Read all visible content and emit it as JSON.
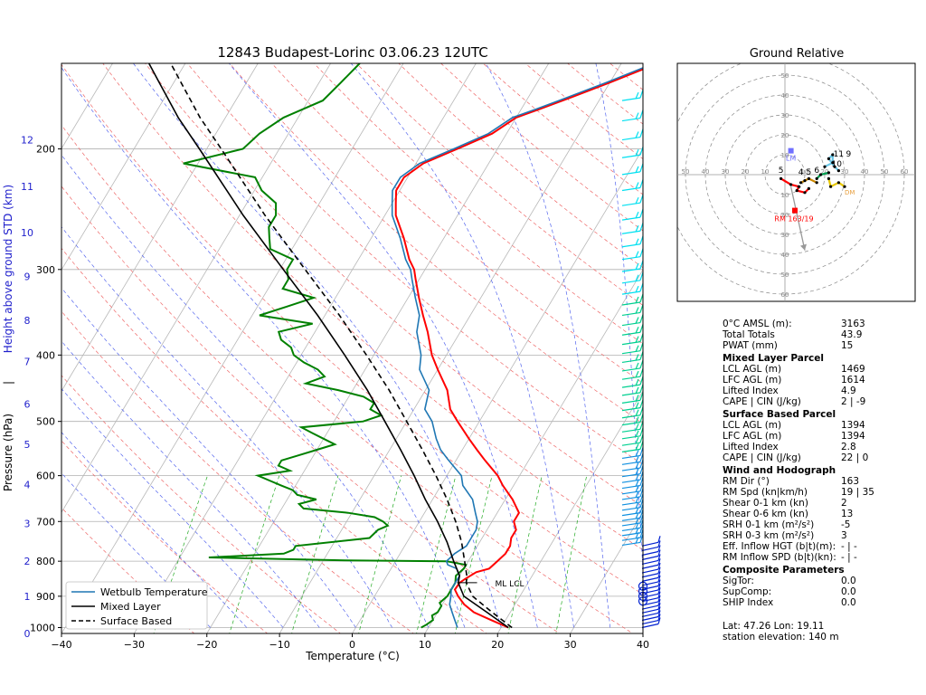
{
  "title": "12843 Budapest-Lorinc 03.06.23 12UTC",
  "chart_data": {
    "type": "line",
    "title": "12843 Budapest-Lorinc 03.06.23 12UTC",
    "xlabel": "Temperature (°C)",
    "ylabel": "Pressure (hPa)",
    "ylabel_secondary": "Height above ground STD (km)",
    "ylabel_separator": "|",
    "xlim": [
      -40,
      40
    ],
    "ylim": [
      1020,
      150
    ],
    "x_ticks": [
      -40,
      -30,
      -20,
      -10,
      0,
      10,
      20,
      30,
      40
    ],
    "p_ticks": [
      1000,
      900,
      800,
      700,
      600,
      500,
      400,
      300,
      200
    ],
    "height_ticks": [
      {
        "km": 0,
        "p": 1020
      },
      {
        "km": 1,
        "p": 900
      },
      {
        "km": 2,
        "p": 800
      },
      {
        "km": 3,
        "p": 705
      },
      {
        "km": 4,
        "p": 618
      },
      {
        "km": 5,
        "p": 540
      },
      {
        "km": 6,
        "p": 472
      },
      {
        "km": 7,
        "p": 409
      },
      {
        "km": 8,
        "p": 356
      },
      {
        "km": 9,
        "p": 307
      },
      {
        "km": 10,
        "p": 265
      },
      {
        "km": 11,
        "p": 227
      },
      {
        "km": 12,
        "p": 194
      }
    ],
    "skew_factor": 0.6,
    "series": [
      {
        "name": "Temperature",
        "color": "#ff0000",
        "p": [
          1000,
          975,
          950,
          925,
          900,
          880,
          860,
          850,
          840,
          830,
          820,
          800,
          780,
          760,
          740,
          720,
          700,
          680,
          650,
          620,
          600,
          570,
          550,
          530,
          500,
          480,
          450,
          420,
          400,
          370,
          350,
          330,
          310,
          300,
          290,
          270,
          250,
          240,
          230,
          220,
          210,
          200,
          190,
          180,
          175,
          170,
          160,
          150
        ],
        "t": [
          21,
          18,
          15,
          13,
          11.5,
          10.5,
          10.6,
          11,
          11.5,
          12,
          13.5,
          14,
          14.5,
          14.5,
          14,
          14,
          13,
          13,
          11,
          8.5,
          7,
          4,
          2,
          0,
          -3,
          -5,
          -7,
          -10,
          -12,
          -14.5,
          -16.5,
          -18.5,
          -20.5,
          -21.5,
          -23,
          -25.5,
          -28.5,
          -29.5,
          -30.5,
          -30.5,
          -29,
          -25.5,
          -22,
          -20,
          -17.5,
          -15,
          -10,
          -5
        ]
      },
      {
        "name": "Dewpoint",
        "color": "#008000",
        "p": [
          1000,
          990,
          975,
          960,
          950,
          930,
          920,
          900,
          880,
          860,
          840,
          820,
          810,
          800,
          798,
          790,
          780,
          770,
          760,
          740,
          720,
          710,
          700,
          690,
          680,
          670,
          660,
          650,
          640,
          630,
          620,
          610,
          600,
          590,
          580,
          570,
          560,
          550,
          540,
          530,
          520,
          510,
          500,
          490,
          480,
          470,
          460,
          450,
          440,
          430,
          420,
          410,
          400,
          390,
          380,
          370,
          360,
          350,
          340,
          330,
          320,
          310,
          300,
          290,
          280,
          270,
          260,
          250,
          240,
          230,
          220,
          210,
          200,
          190,
          180,
          170,
          160,
          150
        ],
        "t": [
          9,
          9.5,
          10,
          9.5,
          10,
          10,
          9.5,
          10,
          10,
          10,
          9.5,
          10,
          10,
          7,
          -7,
          -26,
          -16,
          -15,
          -15,
          -5.5,
          -5,
          -4,
          -5,
          -6.5,
          -10.5,
          -17,
          -18,
          -16,
          -19,
          -20,
          -22,
          -24,
          -26,
          -22,
          -24,
          -24,
          -22,
          -20,
          -18,
          -20,
          -22,
          -24,
          -16,
          -14,
          -16,
          -16,
          -18,
          -22,
          -27,
          -25,
          -26.5,
          -29,
          -31,
          -32,
          -34,
          -35,
          -31,
          -39,
          -36,
          -33,
          -38,
          -38,
          -39,
          -39,
          -43,
          -44,
          -45,
          -45,
          -46,
          -49,
          -51,
          -62,
          -55,
          -54,
          -52,
          -48,
          -47,
          -46
        ]
      },
      {
        "name": "Wetbulb Temperature",
        "color": "#1f77b4",
        "p": [
          1000,
          975,
          950,
          925,
          900,
          880,
          860,
          840,
          830,
          820,
          810,
          800,
          780,
          760,
          740,
          720,
          700,
          680,
          650,
          620,
          600,
          570,
          550,
          530,
          500,
          480,
          450,
          420,
          400,
          370,
          350,
          330,
          310,
          300,
          290,
          270,
          250,
          240,
          230,
          220,
          210,
          200,
          190,
          180,
          175,
          170,
          160,
          150
        ],
        "t": [
          14,
          13,
          12,
          11,
          10.5,
          10,
          10,
          10,
          9.5,
          9,
          7.5,
          7,
          7.5,
          8.5,
          8.5,
          8.5,
          8,
          7,
          5.5,
          3,
          2,
          -1,
          -3,
          -4.5,
          -6.5,
          -8.5,
          -9.5,
          -12.5,
          -13.5,
          -16,
          -17,
          -19,
          -21,
          -22,
          -23.5,
          -26,
          -29,
          -30,
          -31,
          -31,
          -29.5,
          -26,
          -22.5,
          -20.5,
          -18,
          -15.5,
          -10.5,
          -5.5
        ]
      },
      {
        "name": "Mixed Layer",
        "color": "#000000",
        "dash": "",
        "p": [
          1000,
          950,
          900,
          860,
          840,
          800,
          750,
          700,
          650,
          600,
          550,
          500,
          450,
          400,
          350,
          300,
          250,
          200,
          180,
          160,
          150
        ],
        "t": [
          21,
          16.8,
          12.3,
          10.4,
          10,
          8,
          5.5,
          2.5,
          -1,
          -4.5,
          -8.5,
          -13,
          -18,
          -24,
          -31,
          -39.5,
          -49.5,
          -61,
          -66.5,
          -72,
          -75
        ]
      },
      {
        "name": "Surface Based",
        "color": "#000000",
        "dash": "6,4",
        "p": [
          1000,
          950,
          900,
          860,
          840,
          800,
          750,
          700,
          650,
          600,
          550,
          500,
          450,
          400,
          350,
          300,
          250,
          200,
          180,
          160,
          150
        ],
        "t": [
          21.5,
          17.5,
          13.5,
          11.5,
          11,
          9.5,
          7.5,
          5,
          2,
          -1.5,
          -5.5,
          -10,
          -15,
          -21,
          -28,
          -36.5,
          -46.5,
          -58,
          -63.5,
          -69,
          -72
        ]
      }
    ],
    "legend": {
      "placement": "bottom-left",
      "entries": [
        {
          "label": "Wetbulb Temperature",
          "color": "#1f77b4",
          "style": "solid"
        },
        {
          "label": "Mixed Layer",
          "color": "#000000",
          "style": "solid"
        },
        {
          "label": "Surface Based",
          "color": "#000000",
          "style": "dashed"
        }
      ]
    },
    "annotations": [
      {
        "text": "ML LCL",
        "p": 860,
        "t": 11
      }
    ],
    "wind_barbs": {
      "columns": [
        {
          "name": "upper-layer",
          "colors": [
            "#00e0f0",
            "#00d090",
            "#1090e0"
          ],
          "p_from": 170,
          "p_to": 760
        },
        {
          "name": "lower-layer",
          "color": "#0020d0",
          "p_from": 760,
          "p_to": 1000
        }
      ]
    },
    "hodograph": {
      "type": "scatter",
      "title": "Ground Relative",
      "rings": [
        10,
        20,
        30,
        40,
        50,
        60
      ],
      "ring_labels": [
        "10",
        "20",
        "30",
        "40",
        "50",
        "60"
      ],
      "lm": {
        "label": "LM",
        "u": 3,
        "v": 12,
        "color": "#7070ff"
      },
      "rm": {
        "label": "RM 163/19",
        "u": 5,
        "v": -18,
        "color": "#ff0000"
      },
      "mean_wind_arrow": {
        "u1": 3,
        "v1": -6,
        "u2": 10,
        "v2": -38,
        "color": "#999999"
      },
      "dm_label": {
        "text": "DM",
        "u": 30,
        "v": -10
      },
      "height_labels": [
        {
          "text": "5",
          "u": -2,
          "v": 1
        },
        {
          "text": "4",
          "u": 8,
          "v": 0
        },
        {
          "text": "5",
          "u": 12,
          "v": 0
        },
        {
          "text": "6",
          "u": 16,
          "v": 1
        },
        {
          "text": "10",
          "u": 26,
          "v": 4
        },
        {
          "text": "11",
          "u": 27,
          "v": 9
        },
        {
          "text": "9",
          "u": 32,
          "v": 9
        }
      ],
      "trace": [
        {
          "color": "#ff0000",
          "points": [
            [
              -2,
              -2
            ],
            [
              3,
              -5
            ],
            [
              7,
              -6
            ],
            [
              6,
              -8
            ],
            [
              10,
              -9
            ],
            [
              12,
              -7
            ]
          ]
        },
        {
          "color": "#cc8800",
          "points": [
            [
              8,
              -4
            ],
            [
              10,
              -3
            ],
            [
              12,
              -2
            ],
            [
              16,
              -4
            ]
          ]
        },
        {
          "color": "#00a050",
          "points": [
            [
              16,
              -2
            ],
            [
              18,
              0
            ],
            [
              22,
              1
            ]
          ]
        },
        {
          "color": "#6ac8e8",
          "points": [
            [
              20,
              4
            ],
            [
              24,
              6
            ],
            [
              24,
              10
            ],
            [
              22,
              8
            ],
            [
              25,
              4
            ],
            [
              27,
              2
            ]
          ]
        },
        {
          "color": "#e8c800",
          "points": [
            [
              22,
              -2
            ],
            [
              23,
              -6
            ],
            [
              27,
              -4
            ],
            [
              30,
              -6
            ]
          ]
        }
      ]
    }
  },
  "params": {
    "rows_top": [
      {
        "k": "0°C AMSL (m):",
        "v": "3163"
      },
      {
        "k": "Total Totals",
        "v": "43.9"
      },
      {
        "k": "PWAT (mm)",
        "v": "15"
      }
    ],
    "ml_title": "Mixed Layer Parcel",
    "ml": [
      {
        "k": "LCL AGL (m)",
        "v": "1469"
      },
      {
        "k": "LFC AGL (m)",
        "v": "1614"
      },
      {
        "k": "Lifted Index",
        "v": "4.9"
      },
      {
        "k": "CAPE | CIN (J/kg)",
        "v": "2  | -9"
      }
    ],
    "sb_title": "Surface Based Parcel",
    "sb": [
      {
        "k": "LCL AGL (m)",
        "v": "1394"
      },
      {
        "k": "LFC AGL (m)",
        "v": "1394"
      },
      {
        "k": "Lifted Index",
        "v": "2.8"
      },
      {
        "k": "CAPE | CIN (J/kg)",
        "v": "22  | 0"
      }
    ],
    "wind_title": "Wind and Hodograph",
    "wind": [
      {
        "k": "RM Dir (°)",
        "v": "163"
      },
      {
        "k": "RM Spd (kn|km/h)",
        "v": "19 | 35"
      },
      {
        "k": "Shear 0-1 km (kn)",
        "v": "2"
      },
      {
        "k": "Shear 0-6 km (kn)",
        "v": "13"
      },
      {
        "k": "SRH 0-1 km (m²/s²)",
        "v": "-5"
      },
      {
        "k": "SRH 0-3 km (m²/s²)",
        "v": "3"
      },
      {
        "k": "Eff. Inflow HGT (b|t)(m):",
        "v": "- | -"
      },
      {
        "k": "RM Inflow SPD (b|t)(kn):",
        "v": "- | -"
      }
    ],
    "comp_title": "Composite Parameters",
    "comp": [
      {
        "k": "SigTor:",
        "v": "0.0"
      },
      {
        "k": "SupComp:",
        "v": "0.0"
      },
      {
        "k": "SHIP Index",
        "v": "0.0"
      }
    ],
    "latlon": "Lat: 47.26  Lon: 19.11",
    "elevation": "station elevation: 140 m"
  }
}
